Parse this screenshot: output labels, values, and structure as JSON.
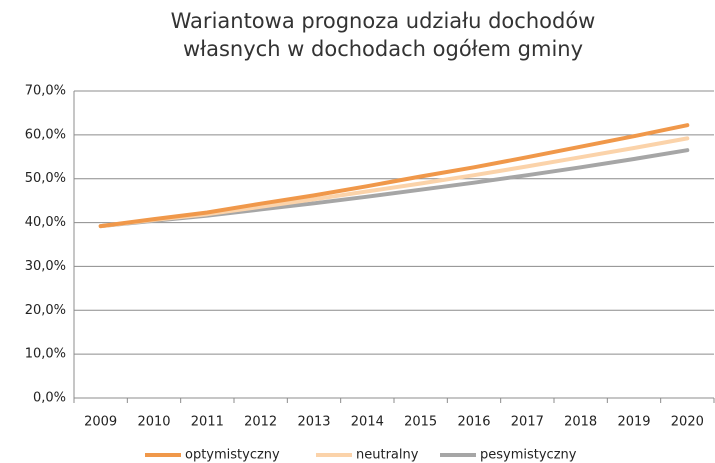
{
  "chart_data": {
    "type": "line",
    "title": [
      "Wariantowa prognoza udziału dochodów",
      "własnych w dochodach ogółem gminy"
    ],
    "categories": [
      "2009",
      "2010",
      "2011",
      "2012",
      "2013",
      "2014",
      "2015",
      "2016",
      "2017",
      "2018",
      "2019",
      "2020"
    ],
    "series": [
      {
        "name": "optymistyczny",
        "color": "#f0984a",
        "values": [
          39.2,
          40.8,
          42.3,
          44.3,
          46.2,
          48.3,
          50.5,
          52.6,
          54.9,
          57.3,
          59.7,
          62.2
        ]
      },
      {
        "name": "neutralny",
        "color": "#fbd3aa",
        "values": [
          39.2,
          40.6,
          41.9,
          43.6,
          45.3,
          47.1,
          48.9,
          50.8,
          52.8,
          54.9,
          57.0,
          59.2
        ]
      },
      {
        "name": "pesymistyczny",
        "color": "#a6a6a6",
        "values": [
          39.2,
          40.4,
          41.6,
          43.0,
          44.4,
          45.9,
          47.5,
          49.1,
          50.8,
          52.6,
          54.5,
          56.5
        ]
      }
    ],
    "ylim": [
      0,
      70
    ],
    "yticks": [
      {
        "value": 0,
        "label": "0,0%"
      },
      {
        "value": 10,
        "label": "10,0%"
      },
      {
        "value": 20,
        "label": "20,0%"
      },
      {
        "value": 30,
        "label": "30,0%"
      },
      {
        "value": 40,
        "label": "40,0%"
      },
      {
        "value": 50,
        "label": "50,0%"
      },
      {
        "value": 60,
        "label": "60,0%"
      },
      {
        "value": 70,
        "label": "70,0%"
      }
    ],
    "grid": true,
    "legend": "bottom"
  }
}
